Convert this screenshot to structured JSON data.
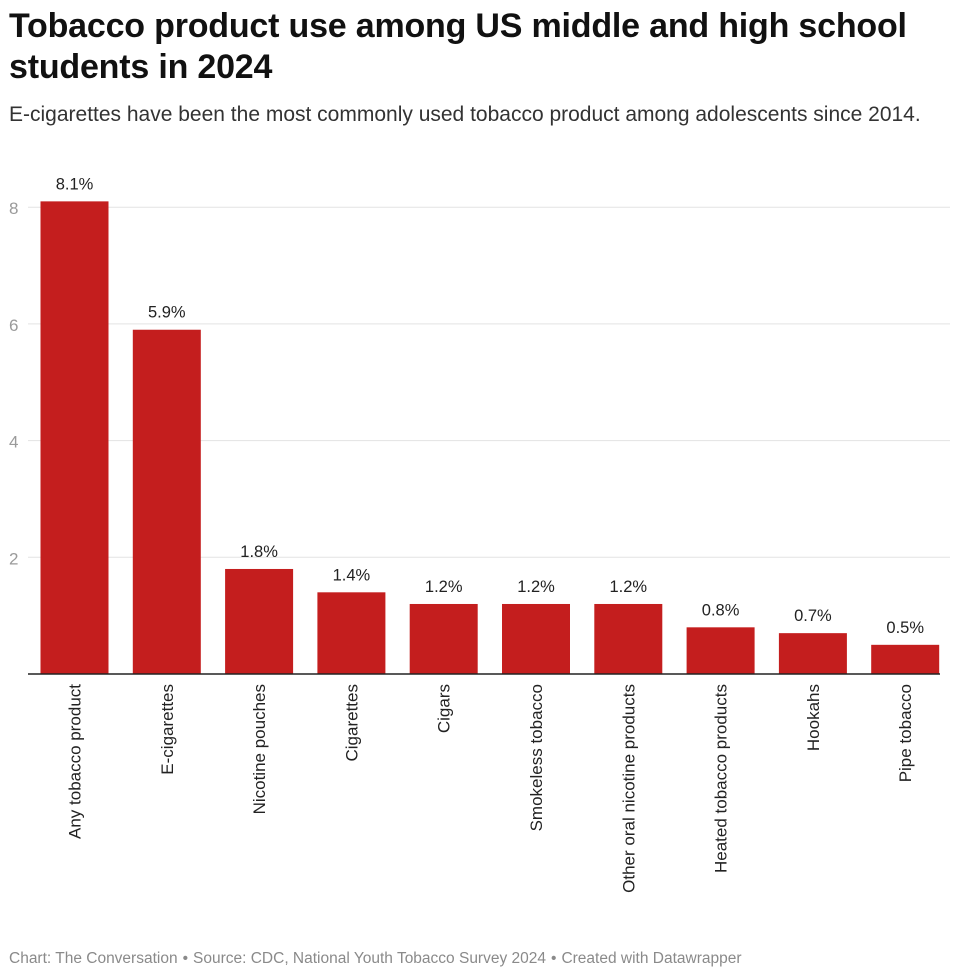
{
  "title": "Tobacco product use among US middle and high school students in 2024",
  "subtitle": "E-cigarettes have been the most commonly used tobacco product among adolescents since 2014.",
  "footer": {
    "chart_credit": "Chart: The Conversation",
    "source": "Source: CDC, National Youth Tobacco Survey 2024",
    "created": "Created with Datawrapper",
    "separator": "•"
  },
  "colors": {
    "bar": "#c41e1e",
    "grid": "#e3e3e3",
    "axis": "#222222",
    "tick": "#9a9a9a"
  },
  "chart_data": {
    "type": "bar",
    "title": "Tobacco product use among US middle and high school students in 2024",
    "xlabel": "",
    "ylabel": "",
    "ylim": [
      0,
      8
    ],
    "yticks": [
      2,
      4,
      6,
      8
    ],
    "grid": true,
    "categories": [
      "Any tobacco product",
      "E-cigarettes",
      "Nicotine pouches",
      "Cigarettes",
      "Cigars",
      "Smokeless tobacco",
      "Other oral nicotine products",
      "Heated tobacco products",
      "Hookahs",
      "Pipe tobacco"
    ],
    "values": [
      8.1,
      5.9,
      1.8,
      1.4,
      1.2,
      1.2,
      1.2,
      0.8,
      0.7,
      0.5
    ],
    "labels": [
      "8.1%",
      "5.9%",
      "1.8%",
      "1.4%",
      "1.2%",
      "1.2%",
      "1.2%",
      "0.8%",
      "0.7%",
      "0.5%"
    ]
  }
}
